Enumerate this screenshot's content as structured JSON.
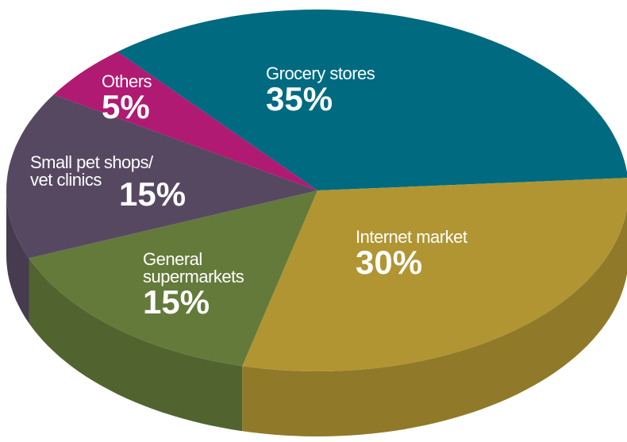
{
  "chart_data": {
    "type": "pie",
    "categories": [
      "Grocery stores",
      "Internet market",
      "General supermarkets",
      "Small pet shops/ vet clinics",
      "Others"
    ],
    "values": [
      35,
      30,
      15,
      15,
      5
    ],
    "value_labels": [
      "35%",
      "30%",
      "15%",
      "15%",
      "5%"
    ],
    "colors": [
      "#006a80",
      "#b09532",
      "#637a3a",
      "#574862",
      "#b01a72"
    ]
  }
}
